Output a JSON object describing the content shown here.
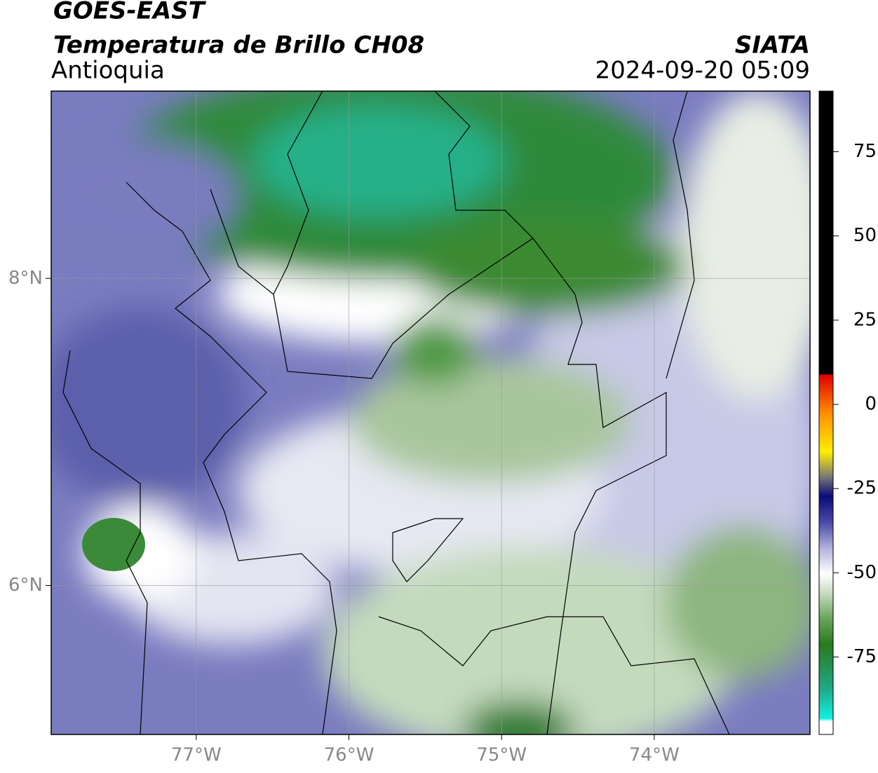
{
  "header": {
    "satellite": "GOES-EAST",
    "product": "Temperatura de Brillo CH08",
    "region": "Antioquia",
    "source": "SIATA",
    "datetime": "2024-09-20 05:09"
  },
  "map": {
    "lonlim": [
      -77.95,
      -72.98
    ],
    "latlim": [
      5.03,
      9.22
    ],
    "lonticks": [
      {
        "value": -77,
        "label": "77°W"
      },
      {
        "value": -76,
        "label": "76°W"
      },
      {
        "value": -75,
        "label": "75°W"
      },
      {
        "value": -74,
        "label": "74°W"
      }
    ],
    "latticks": [
      {
        "value": 8,
        "label": "8°N"
      },
      {
        "value": 6,
        "label": "6°N"
      }
    ],
    "grid": true
  },
  "colorbar": {
    "lim": [
      -98,
      93
    ],
    "ticks": [
      75,
      50,
      25,
      0,
      -25,
      -50,
      -75
    ]
  }
}
